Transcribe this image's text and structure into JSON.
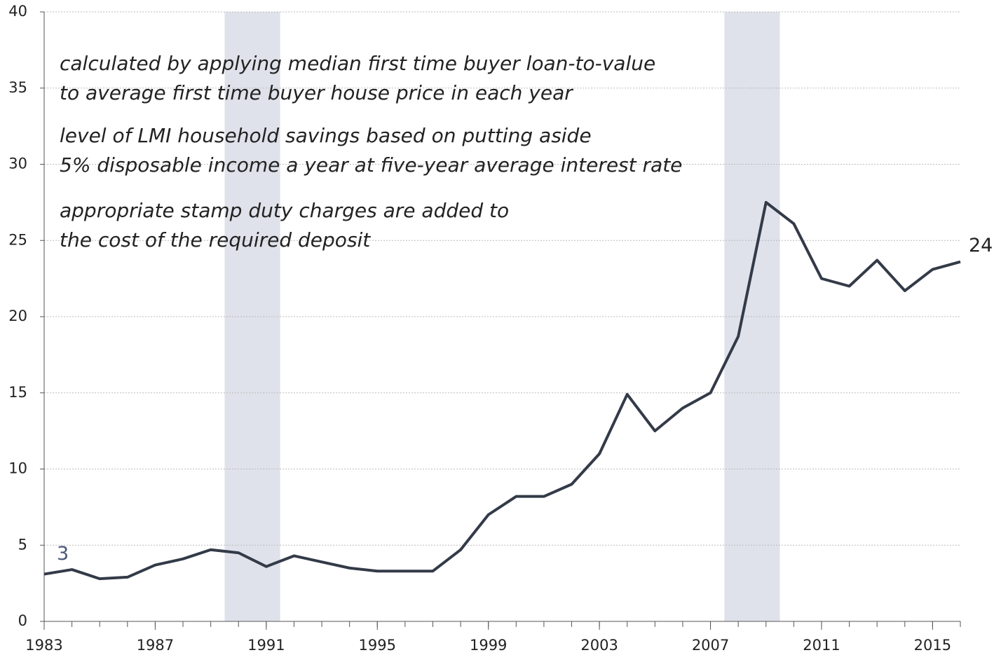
{
  "chart_data": {
    "type": "line",
    "x": [
      1983,
      1984,
      1985,
      1986,
      1987,
      1988,
      1989,
      1990,
      1991,
      1992,
      1993,
      1994,
      1995,
      1996,
      1997,
      1998,
      1999,
      2000,
      2001,
      2002,
      2003,
      2004,
      2005,
      2006,
      2007,
      2008,
      2009,
      2010,
      2011,
      2012,
      2013,
      2014,
      2015,
      2016
    ],
    "series": [
      {
        "color": "#333a48",
        "values": [
          3.1,
          3.4,
          2.8,
          2.9,
          3.7,
          4.1,
          4.7,
          4.5,
          3.6,
          4.3,
          3.9,
          3.5,
          3.3,
          3.3,
          3.3,
          4.7,
          7.0,
          8.2,
          8.2,
          9.0,
          11.0,
          14.9,
          12.5,
          14.0,
          15.0,
          18.7,
          27.5,
          26.1,
          22.5,
          22.0,
          23.7,
          21.7,
          23.1,
          23.6
        ],
        "value_labels": [
          "3",
          null,
          null,
          null,
          null,
          null,
          null,
          null,
          null,
          null,
          null,
          null,
          null,
          null,
          null,
          null,
          null,
          null,
          null,
          null,
          null,
          null,
          null,
          null,
          null,
          null,
          null,
          null,
          null,
          null,
          null,
          null,
          null,
          "24"
        ]
      }
    ],
    "xlim": [
      1983,
      2016
    ],
    "xticks": [
      1983,
      1987,
      1991,
      1995,
      1999,
      2003,
      2007,
      2011,
      2015
    ],
    "ylim": [
      0,
      40
    ],
    "yticks": [
      0,
      5,
      10,
      15,
      20,
      25,
      30,
      35,
      40
    ],
    "grid": true,
    "shaded_ranges": [
      [
        1989.5,
        1991.5
      ],
      [
        2007.5,
        2009.5
      ]
    ],
    "shade_color": "#dfe2ea",
    "annotations": [
      [
        "calculated by applying median first time buyer loan-to-value",
        "to average first time buyer house price in each year"
      ],
      [
        "level of LMI household savings based on putting aside",
        "5% disposable income a year at five-year average interest rate"
      ],
      [
        "appropriate stamp duty charges are added to",
        "the cost of the required deposit"
      ]
    ]
  }
}
